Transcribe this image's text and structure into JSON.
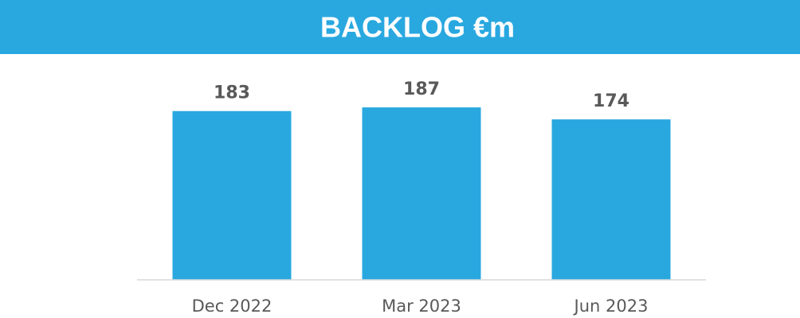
{
  "chart_data": {
    "type": "bar",
    "title": "BACKLOG €m",
    "categories": [
      "Dec 2022",
      "Mar 2023",
      "Jun 2023"
    ],
    "values": [
      183,
      187,
      174
    ],
    "color": "#29a8e0",
    "ylim": [
      0,
      200
    ]
  }
}
